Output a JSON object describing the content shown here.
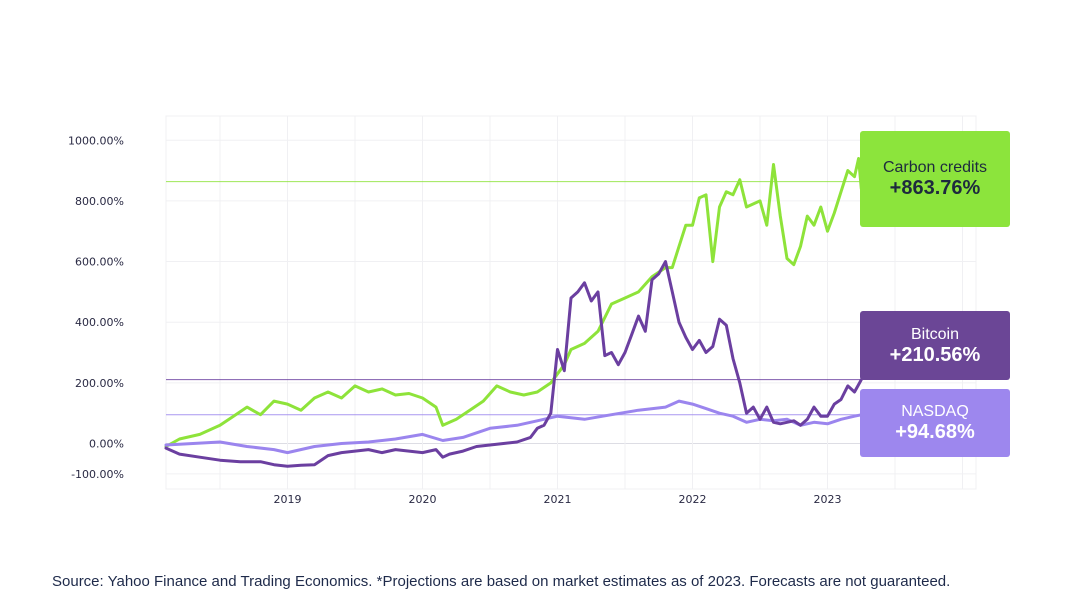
{
  "chart_data": {
    "type": "line",
    "title": "",
    "xlabel": "",
    "ylabel": "",
    "ylim": [
      -150,
      1080
    ],
    "xlim": [
      2018.1,
      2024.1
    ],
    "y_ticks": [
      {
        "value": 1000,
        "label": "1000.00%"
      },
      {
        "value": 800,
        "label": "800.00%"
      },
      {
        "value": 600,
        "label": "600.00%"
      },
      {
        "value": 400,
        "label": "400.00%"
      },
      {
        "value": 200,
        "label": "200.00%"
      },
      {
        "value": 0,
        "label": "0.00%"
      },
      {
        "value": -100,
        "label": "-100.00%"
      }
    ],
    "x_ticks": [
      {
        "value": 2019,
        "label": "2019"
      },
      {
        "value": 2020,
        "label": "2020"
      },
      {
        "value": 2021,
        "label": "2021"
      },
      {
        "value": 2022,
        "label": "2022"
      },
      {
        "value": 2023,
        "label": "2023"
      }
    ],
    "series": [
      {
        "name": "Carbon credits",
        "color": "#8ee33a",
        "final_label": "+863.76%",
        "final_value": 863.76,
        "points": [
          [
            2018.1,
            -10
          ],
          [
            2018.2,
            15
          ],
          [
            2018.35,
            30
          ],
          [
            2018.5,
            60
          ],
          [
            2018.6,
            90
          ],
          [
            2018.7,
            120
          ],
          [
            2018.8,
            95
          ],
          [
            2018.9,
            140
          ],
          [
            2019.0,
            130
          ],
          [
            2019.1,
            110
          ],
          [
            2019.2,
            150
          ],
          [
            2019.3,
            170
          ],
          [
            2019.4,
            150
          ],
          [
            2019.5,
            190
          ],
          [
            2019.6,
            170
          ],
          [
            2019.7,
            180
          ],
          [
            2019.8,
            160
          ],
          [
            2019.9,
            165
          ],
          [
            2020.0,
            150
          ],
          [
            2020.1,
            120
          ],
          [
            2020.15,
            60
          ],
          [
            2020.25,
            80
          ],
          [
            2020.35,
            110
          ],
          [
            2020.45,
            140
          ],
          [
            2020.55,
            190
          ],
          [
            2020.65,
            170
          ],
          [
            2020.75,
            160
          ],
          [
            2020.85,
            170
          ],
          [
            2020.95,
            200
          ],
          [
            2021.0,
            230
          ],
          [
            2021.05,
            260
          ],
          [
            2021.1,
            310
          ],
          [
            2021.2,
            330
          ],
          [
            2021.3,
            370
          ],
          [
            2021.4,
            460
          ],
          [
            2021.5,
            480
          ],
          [
            2021.6,
            500
          ],
          [
            2021.7,
            550
          ],
          [
            2021.8,
            580
          ],
          [
            2021.85,
            580
          ],
          [
            2021.9,
            650
          ],
          [
            2021.95,
            720
          ],
          [
            2022.0,
            720
          ],
          [
            2022.05,
            810
          ],
          [
            2022.1,
            820
          ],
          [
            2022.15,
            600
          ],
          [
            2022.2,
            780
          ],
          [
            2022.25,
            830
          ],
          [
            2022.3,
            820
          ],
          [
            2022.35,
            870
          ],
          [
            2022.4,
            780
          ],
          [
            2022.5,
            800
          ],
          [
            2022.55,
            720
          ],
          [
            2022.6,
            920
          ],
          [
            2022.65,
            750
          ],
          [
            2022.7,
            610
          ],
          [
            2022.75,
            590
          ],
          [
            2022.8,
            650
          ],
          [
            2022.85,
            750
          ],
          [
            2022.9,
            720
          ],
          [
            2022.95,
            780
          ],
          [
            2023.0,
            700
          ],
          [
            2023.05,
            760
          ],
          [
            2023.1,
            830
          ],
          [
            2023.15,
            900
          ],
          [
            2023.2,
            880
          ],
          [
            2023.23,
            940
          ],
          [
            2023.25,
            840
          ],
          [
            2023.28,
            870
          ],
          [
            2023.3,
            863.76
          ]
        ]
      },
      {
        "name": "Bitcoin",
        "color": "#6b3fa0",
        "final_label": "+210.56%",
        "final_value": 210.56,
        "points": [
          [
            2018.1,
            -15
          ],
          [
            2018.2,
            -35
          ],
          [
            2018.35,
            -45
          ],
          [
            2018.5,
            -55
          ],
          [
            2018.65,
            -60
          ],
          [
            2018.8,
            -60
          ],
          [
            2018.9,
            -70
          ],
          [
            2019.0,
            -75
          ],
          [
            2019.1,
            -72
          ],
          [
            2019.2,
            -70
          ],
          [
            2019.3,
            -40
          ],
          [
            2019.4,
            -30
          ],
          [
            2019.5,
            -25
          ],
          [
            2019.6,
            -20
          ],
          [
            2019.7,
            -30
          ],
          [
            2019.8,
            -20
          ],
          [
            2019.9,
            -25
          ],
          [
            2020.0,
            -30
          ],
          [
            2020.1,
            -20
          ],
          [
            2020.15,
            -45
          ],
          [
            2020.2,
            -35
          ],
          [
            2020.3,
            -25
          ],
          [
            2020.4,
            -10
          ],
          [
            2020.5,
            -5
          ],
          [
            2020.6,
            0
          ],
          [
            2020.7,
            5
          ],
          [
            2020.8,
            20
          ],
          [
            2020.85,
            50
          ],
          [
            2020.9,
            60
          ],
          [
            2020.95,
            100
          ],
          [
            2021.0,
            310
          ],
          [
            2021.05,
            240
          ],
          [
            2021.1,
            480
          ],
          [
            2021.15,
            500
          ],
          [
            2021.2,
            530
          ],
          [
            2021.25,
            470
          ],
          [
            2021.3,
            500
          ],
          [
            2021.35,
            290
          ],
          [
            2021.4,
            300
          ],
          [
            2021.45,
            260
          ],
          [
            2021.5,
            300
          ],
          [
            2021.55,
            360
          ],
          [
            2021.6,
            420
          ],
          [
            2021.65,
            370
          ],
          [
            2021.7,
            540
          ],
          [
            2021.75,
            560
          ],
          [
            2021.8,
            600
          ],
          [
            2021.85,
            500
          ],
          [
            2021.9,
            400
          ],
          [
            2021.95,
            350
          ],
          [
            2022.0,
            310
          ],
          [
            2022.05,
            340
          ],
          [
            2022.1,
            300
          ],
          [
            2022.15,
            320
          ],
          [
            2022.2,
            410
          ],
          [
            2022.25,
            390
          ],
          [
            2022.3,
            280
          ],
          [
            2022.35,
            200
          ],
          [
            2022.4,
            100
          ],
          [
            2022.45,
            120
          ],
          [
            2022.5,
            80
          ],
          [
            2022.55,
            120
          ],
          [
            2022.6,
            70
          ],
          [
            2022.65,
            65
          ],
          [
            2022.7,
            70
          ],
          [
            2022.75,
            75
          ],
          [
            2022.8,
            60
          ],
          [
            2022.85,
            80
          ],
          [
            2022.9,
            120
          ],
          [
            2022.95,
            90
          ],
          [
            2023.0,
            90
          ],
          [
            2023.05,
            130
          ],
          [
            2023.1,
            145
          ],
          [
            2023.15,
            190
          ],
          [
            2023.2,
            170
          ],
          [
            2023.25,
            210.56
          ]
        ]
      },
      {
        "name": "NASDAQ",
        "color": "#9b85ee",
        "final_label": "+94.68%",
        "final_value": 94.68,
        "points": [
          [
            2018.1,
            -5
          ],
          [
            2018.3,
            0
          ],
          [
            2018.5,
            5
          ],
          [
            2018.7,
            -10
          ],
          [
            2018.9,
            -20
          ],
          [
            2019.0,
            -30
          ],
          [
            2019.2,
            -10
          ],
          [
            2019.4,
            0
          ],
          [
            2019.6,
            5
          ],
          [
            2019.8,
            15
          ],
          [
            2020.0,
            30
          ],
          [
            2020.15,
            10
          ],
          [
            2020.3,
            20
          ],
          [
            2020.5,
            50
          ],
          [
            2020.7,
            60
          ],
          [
            2020.85,
            75
          ],
          [
            2021.0,
            90
          ],
          [
            2021.2,
            80
          ],
          [
            2021.4,
            95
          ],
          [
            2021.6,
            110
          ],
          [
            2021.8,
            120
          ],
          [
            2021.9,
            140
          ],
          [
            2022.0,
            130
          ],
          [
            2022.1,
            115
          ],
          [
            2022.2,
            100
          ],
          [
            2022.3,
            90
          ],
          [
            2022.4,
            70
          ],
          [
            2022.5,
            80
          ],
          [
            2022.6,
            75
          ],
          [
            2022.7,
            80
          ],
          [
            2022.8,
            60
          ],
          [
            2022.9,
            70
          ],
          [
            2023.0,
            65
          ],
          [
            2023.1,
            80
          ],
          [
            2023.2,
            90
          ],
          [
            2023.25,
            94.68
          ]
        ]
      }
    ],
    "reference_lines": [
      {
        "series": "Carbon credits",
        "value": 863.76
      },
      {
        "series": "Bitcoin",
        "value": 210.56
      },
      {
        "series": "NASDAQ",
        "value": 94.68
      }
    ]
  },
  "badges": {
    "carbon": {
      "name": "Carbon credits",
      "value": "+863.76%"
    },
    "bitcoin": {
      "name": "Bitcoin",
      "value": "+210.56%"
    },
    "nasdaq": {
      "name": "NASDAQ",
      "value": "+94.68%"
    }
  },
  "source": "Source: Yahoo Finance and Trading Economics. *Projections are based on market estimates as of 2023. Forecasts are not guaranteed."
}
